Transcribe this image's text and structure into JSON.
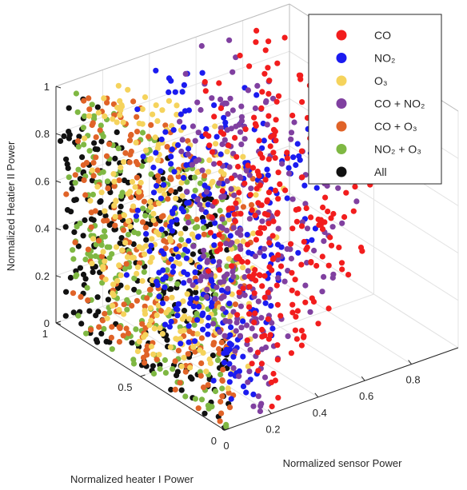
{
  "chart_data": {
    "type": "scatter",
    "dimensions": 3,
    "title": "",
    "xlabel": "Normalized heater I Power",
    "ylabel": "Normalized sensor Power",
    "zlabel": "Normalized Heatier II Power",
    "xlim": [
      0,
      1
    ],
    "ylim": [
      0,
      1
    ],
    "zlim": [
      0,
      1
    ],
    "x_ticks": [
      "0",
      "0.5",
      "1"
    ],
    "y_ticks": [
      "0",
      "0.2",
      "0.4",
      "0.6",
      "0.8"
    ],
    "z_ticks": [
      "0",
      "0.2",
      "0.4",
      "0.6",
      "0.8",
      "1"
    ],
    "grid": true,
    "legend_position": "top-right",
    "series": [
      {
        "name": "All",
        "color": "#111111",
        "sensor_min": 0.0,
        "sensor_max": 0.06
      },
      {
        "name": "NO₂ + O₃",
        "color": "#7fb843",
        "sensor_min": 0.02,
        "sensor_max": 0.1
      },
      {
        "name": "CO + O₃",
        "color": "#e06328",
        "sensor_min": 0.04,
        "sensor_max": 0.2
      },
      {
        "name": "O₃",
        "color": "#f5d35c",
        "sensor_min": 0.1,
        "sensor_max": 0.32
      },
      {
        "name": "NO₂",
        "color": "#1b1bf0",
        "sensor_min": 0.3,
        "sensor_max": 0.55
      },
      {
        "name": "CO + NO₂",
        "color": "#8040a0",
        "sensor_min": 0.5,
        "sensor_max": 0.8
      },
      {
        "name": "CO",
        "color": "#f21d1d",
        "sensor_min": 0.62,
        "sensor_max": 0.95
      }
    ],
    "legend": [
      {
        "label": "CO",
        "color": "#f21d1d"
      },
      {
        "label": "NO₂",
        "color": "#1b1bf0"
      },
      {
        "label": "O₃",
        "color": "#f5d35c"
      },
      {
        "label": "CO + NO₂",
        "color": "#8040a0"
      },
      {
        "label": "CO + O₃",
        "color": "#e06328"
      },
      {
        "label": "NO₂ + O₃",
        "color": "#7fb843"
      },
      {
        "label": "All",
        "color": "#111111"
      }
    ]
  }
}
